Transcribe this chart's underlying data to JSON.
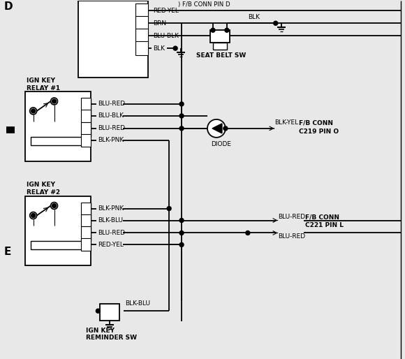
{
  "background_color": "#e8e8e8",
  "line_color": "#000000",
  "text_color": "#000000",
  "wire_labels_relay1": [
    "BLU-RED",
    "BLU-BLK",
    "BLU-RED",
    "BLK-PNK"
  ],
  "wire_labels_relay2": [
    "BLK-PNK",
    "BLK-BLU",
    "BLU-RED",
    "RED-YEL"
  ],
  "wire_labels_top": [
    "RED-YEL",
    "BRN",
    "BLU-BLK",
    "BLK"
  ],
  "top_connector_label": ") F/B CONN PIN D",
  "relay1_label1": "IGN KEY",
  "relay1_label2": "RELAY #1",
  "relay2_label1": "IGN KEY",
  "relay2_label2": "RELAY #2",
  "seat_belt_label": "SEAT BELT SW",
  "diode_label": "DIODE",
  "fb_conn1_label1": "F/B CONN",
  "fb_conn1_label2": "C219 PIN O",
  "fb_conn1_wire": "BLK-YEL",
  "fb_conn2_label1": "F/B CONN",
  "fb_conn2_label2": "C221 PIN L",
  "fb_conn2_wire1": "BLU-RED",
  "fb_conn2_wire2": "BLU-RED",
  "reminder_label1": "IGN KEY",
  "reminder_label2": "REMINDER SW",
  "reminder_wire": "BLK-BLU",
  "blk_label": "BLK",
  "row_d_label": "D",
  "row_e_label": "E"
}
